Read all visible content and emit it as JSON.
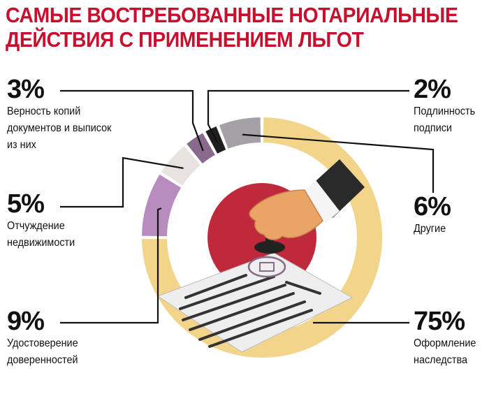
{
  "title_lines": [
    "САМЫЕ ВОСТРЕБОВАННЫЕ НОТАРИАЛЬНЫЕ",
    "ДЕЙСТВИЯ С ПРИМЕНЕНИЕМ ЛЬГОТ"
  ],
  "chart_data": {
    "type": "pie",
    "title": "САМЫЕ ВОСТРЕБОВАННЫЕ НОТАРИАЛЬНЫЕ ДЕЙСТВИЯ С ПРИМЕНЕНИЕМ ЛЬГОТ",
    "slices": [
      {
        "label": "Оформление наследства",
        "value": 75,
        "value_label": "75%",
        "color": "#f2d48a"
      },
      {
        "label": "Удостоверение доверенностей",
        "value": 9,
        "value_label": "9%",
        "color": "#b98cc0"
      },
      {
        "label": "Отчуждение недвижимости",
        "value": 5,
        "value_label": "5%",
        "color": "#e8e2e0"
      },
      {
        "label": "Верность копий документов и выписок из них",
        "value": 3,
        "value_label": "3%",
        "color": "#8a6a8c"
      },
      {
        "label": "Подлинность подписи",
        "value": 2,
        "value_label": "2%",
        "color": "#1e1e1e"
      },
      {
        "label": "Другие",
        "value": 6,
        "value_label": "6%",
        "color": "#a3a1a6"
      }
    ],
    "labels_display": {
      "left": [
        {
          "slice": 3,
          "text": "Верность копий\nдокументов и выписок\nиз них"
        },
        {
          "slice": 2,
          "text": "Отчуждение\nнедвижимости"
        },
        {
          "slice": 1,
          "text": "Удостоверение\nдоверенностей"
        }
      ],
      "right": [
        {
          "slice": 4,
          "text": "Подлинность\nподписи"
        },
        {
          "slice": 5,
          "text": "Другие"
        },
        {
          "slice": 0,
          "text": "Оформление\nнаследства"
        }
      ]
    },
    "center_color": "#c0283c"
  }
}
